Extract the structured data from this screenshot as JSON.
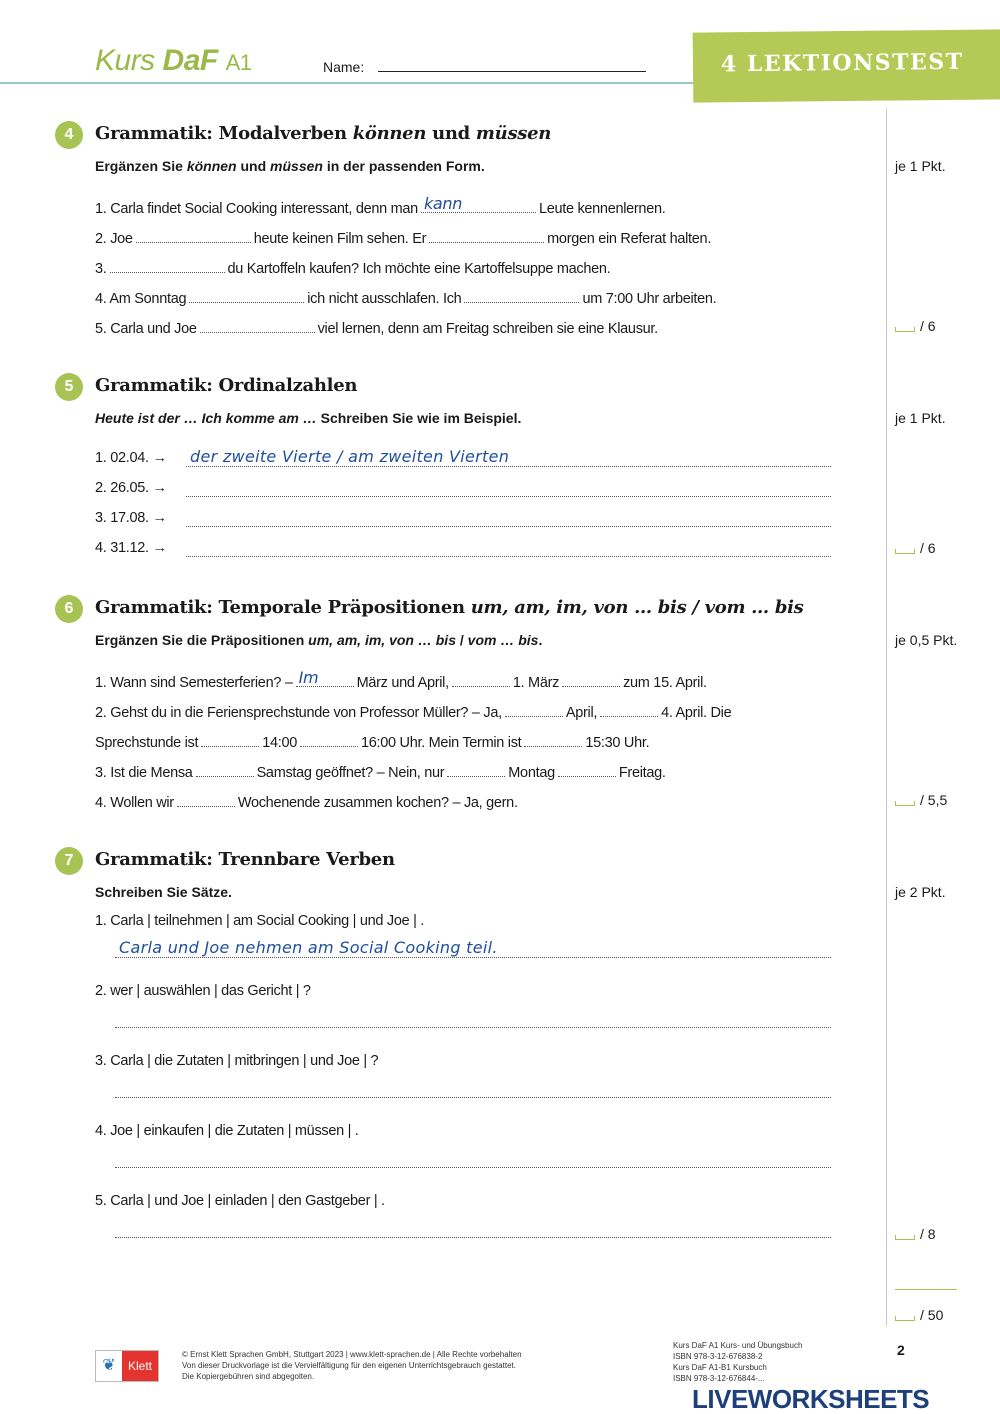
{
  "header": {
    "brand": "Kurs",
    "brand_bold": "DaF",
    "level": "A1",
    "name_label": "Name:",
    "banner": "4 LEKTIONSTEST"
  },
  "colors": {
    "accent": "#a7c353",
    "banner": "#b5c957",
    "handwriting": "#1f4e9c",
    "rule": "#9cc8c4"
  },
  "sections": [
    {
      "number": "4",
      "title": [
        {
          "t": "Grammatik: Modalverben "
        },
        {
          "t": "können",
          "i": true
        },
        {
          "t": " und "
        },
        {
          "t": "müssen",
          "i": true
        }
      ],
      "instruction": [
        {
          "t": "Ergänzen Sie "
        },
        {
          "t": "können",
          "i": true
        },
        {
          "t": " und "
        },
        {
          "t": "müssen",
          "i": true
        },
        {
          "t": " in der passenden Form."
        }
      ],
      "points": "je 1 Pkt.",
      "score": "/ 6",
      "items": [
        [
          {
            "t": "1.  Carla findet Social Cooking interessant, denn man"
          },
          {
            "b": "kann"
          },
          {
            "t": "Leute kennenlernen."
          }
        ],
        [
          {
            "t": "2.  Joe"
          },
          {
            "b": ""
          },
          {
            "t": "heute keinen Film sehen. Er"
          },
          {
            "b": ""
          },
          {
            "t": "morgen ein Referat halten."
          }
        ],
        [
          {
            "t": "3."
          },
          {
            "b": ""
          },
          {
            "t": "du Kartoffeln kaufen? Ich möchte eine Kartoffelsuppe machen."
          }
        ],
        [
          {
            "t": "4.  Am Sonntag"
          },
          {
            "b": ""
          },
          {
            "t": "ich nicht ausschlafen. Ich"
          },
          {
            "b": ""
          },
          {
            "t": "um 7:00 Uhr arbeiten."
          }
        ],
        [
          {
            "t": "5.  Carla und Joe"
          },
          {
            "b": ""
          },
          {
            "t": "viel lernen, denn am Freitag schreiben sie eine Klausur."
          }
        ]
      ]
    },
    {
      "number": "5",
      "title": [
        {
          "t": "Grammatik: Ordinalzahlen"
        }
      ],
      "instruction": [
        {
          "t": "Heute ist der … Ich komme am …",
          "i": true
        },
        {
          "t": " Schreiben Sie wie im Beispiel."
        }
      ],
      "points": "je 1 Pkt.",
      "score": "/ 6",
      "items": [
        {
          "prompt": "1.  02.04. →",
          "answer": "der zweite Vierte / am zweiten Vierten"
        },
        {
          "prompt": "2.  26.05. →",
          "answer": ""
        },
        {
          "prompt": "3.  17.08. →",
          "answer": ""
        },
        {
          "prompt": "4.  31.12. →",
          "answer": ""
        }
      ]
    },
    {
      "number": "6",
      "title": [
        {
          "t": "Grammatik: Temporale Präpositionen "
        },
        {
          "t": "um, am, im, von … bis / vom … bis",
          "i": true
        }
      ],
      "instruction": [
        {
          "t": "Ergänzen Sie die Präpositionen "
        },
        {
          "t": "um, am, im, von … bis",
          "i": true
        },
        {
          "t": " / "
        },
        {
          "t": "vom … bis",
          "i": true
        },
        {
          "t": "."
        }
      ],
      "points": "je 0,5 Pkt.",
      "score": "/ 5,5",
      "items": [
        [
          {
            "t": "1.  Wann sind Semesterferien? –"
          },
          {
            "b": "Im"
          },
          {
            "t": "März und April,"
          },
          {
            "b": ""
          },
          {
            "t": "1. März"
          },
          {
            "b": ""
          },
          {
            "t": "zum 15. April."
          }
        ],
        [
          {
            "t": "2.  Gehst du in die Feriensprechstunde von Professor Müller? – Ja,"
          },
          {
            "b": ""
          },
          {
            "t": "April,"
          },
          {
            "b": ""
          },
          {
            "t": "4. April. Die"
          }
        ],
        [
          {
            "t": "     Sprechstunde ist"
          },
          {
            "b": ""
          },
          {
            "t": "14:00"
          },
          {
            "b": ""
          },
          {
            "t": "16:00 Uhr. Mein Termin ist"
          },
          {
            "b": ""
          },
          {
            "t": "15:30 Uhr."
          }
        ],
        [
          {
            "t": "3.  Ist die Mensa"
          },
          {
            "b": ""
          },
          {
            "t": "Samstag geöffnet? – Nein, nur"
          },
          {
            "b": ""
          },
          {
            "t": "Montag"
          },
          {
            "b": ""
          },
          {
            "t": "Freitag."
          }
        ],
        [
          {
            "t": "4.  Wollen wir"
          },
          {
            "b": ""
          },
          {
            "t": "Wochenende zusammen kochen? – Ja, gern."
          }
        ]
      ]
    },
    {
      "number": "7",
      "title": [
        {
          "t": "Grammatik: Trennbare Verben"
        }
      ],
      "instruction": [
        {
          "t": "Schreiben Sie Sätze."
        }
      ],
      "points": "je 2 Pkt.",
      "score": "/ 8",
      "items": [
        {
          "prompt": "1.  Carla | teilnehmen | am Social Cooking | und Joe | .",
          "answer": "Carla und Joe nehmen am Social Cooking teil."
        },
        {
          "prompt": "2.  wer | auswählen | das Gericht | ?",
          "answer": ""
        },
        {
          "prompt": "3.  Carla | die Zutaten | mitbringen | und Joe | ?",
          "answer": ""
        },
        {
          "prompt": "4.  Joe | einkaufen | die Zutaten | müssen | .",
          "answer": ""
        },
        {
          "prompt": "5.  Carla | und Joe | einladen | den Gastgeber | .",
          "answer": ""
        }
      ]
    }
  ],
  "total_score": "/ 50",
  "footer": {
    "publisher_logo": "Klett",
    "copyright": [
      "© Ernst Klett Sprachen GmbH, Stuttgart 2023 | www.klett-sprachen.de | Alle Rechte vorbehalten",
      "Von dieser Druckvorlage ist die Vervielfältigung für den eigenen Unterrichtsgebrauch gestattet.",
      "Die Kopiergebühren sind abgegolten."
    ],
    "book_info": [
      "Kurs DaF A1 Kurs- und Übungsbuch",
      "ISBN 978-3-12-676838-2",
      "Kurs DaF A1-B1 Kursbuch",
      "ISBN 978-3-12-676844-..."
    ],
    "page_number": "2",
    "watermark": "LIVEWORKSHEETS"
  }
}
